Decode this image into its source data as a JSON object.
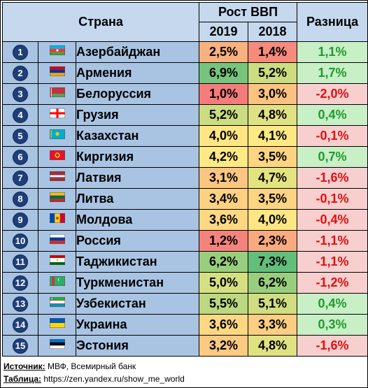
{
  "header": {
    "country_col": "Страна",
    "gdp_group": "Рост ВВП",
    "year1": "2019",
    "year2": "2018",
    "diff_col": "Разница"
  },
  "chart_data": {
    "type": "table",
    "columns": [
      "Страна",
      "2019",
      "2018",
      "Разница"
    ],
    "rows": [
      {
        "n": "1",
        "country": "Азербайджан",
        "flag": "azerbaijan-flag",
        "y2019": "2,5%",
        "y2018": "1,4%",
        "diff": "1,1%",
        "v2019": 2.5,
        "v2018": 1.4,
        "dv": 1.1
      },
      {
        "n": "2",
        "country": "Армения",
        "flag": "armenia-flag",
        "y2019": "6,9%",
        "y2018": "5,2%",
        "diff": "1,7%",
        "v2019": 6.9,
        "v2018": 5.2,
        "dv": 1.7
      },
      {
        "n": "3",
        "country": "Белоруссия",
        "flag": "belarus-flag",
        "y2019": "1,0%",
        "y2018": "3,0%",
        "diff": "-2,0%",
        "v2019": 1.0,
        "v2018": 3.0,
        "dv": -2.0
      },
      {
        "n": "4",
        "country": "Грузия",
        "flag": "georgia-flag",
        "y2019": "5,2%",
        "y2018": "4,8%",
        "diff": "0,4%",
        "v2019": 5.2,
        "v2018": 4.8,
        "dv": 0.4
      },
      {
        "n": "5",
        "country": "Казахстан",
        "flag": "kazakhstan-flag",
        "y2019": "4,0%",
        "y2018": "4,1%",
        "diff": "-0,1%",
        "v2019": 4.0,
        "v2018": 4.1,
        "dv": -0.1
      },
      {
        "n": "6",
        "country": "Киргизия",
        "flag": "kyrgyzstan-flag",
        "y2019": "4,2%",
        "y2018": "3,5%",
        "diff": "0,7%",
        "v2019": 4.2,
        "v2018": 3.5,
        "dv": 0.7
      },
      {
        "n": "7",
        "country": "Латвия",
        "flag": "latvia-flag",
        "y2019": "3,1%",
        "y2018": "4,7%",
        "diff": "-1,6%",
        "v2019": 3.1,
        "v2018": 4.7,
        "dv": -1.6
      },
      {
        "n": "8",
        "country": "Литва",
        "flag": "lithuania-flag",
        "y2019": "3,4%",
        "y2018": "3,5%",
        "diff": "-0,1%",
        "v2019": 3.4,
        "v2018": 3.5,
        "dv": -0.1
      },
      {
        "n": "9",
        "country": "Молдова",
        "flag": "moldova-flag",
        "y2019": "3,6%",
        "y2018": "4,0%",
        "diff": "-0,4%",
        "v2019": 3.6,
        "v2018": 4.0,
        "dv": -0.4
      },
      {
        "n": "10",
        "country": "Россия",
        "flag": "russia-flag",
        "y2019": "1,2%",
        "y2018": "2,3%",
        "diff": "-1,1%",
        "v2019": 1.2,
        "v2018": 2.3,
        "dv": -1.1
      },
      {
        "n": "11",
        "country": "Таджикистан",
        "flag": "tajikistan-flag",
        "y2019": "6,2%",
        "y2018": "7,3%",
        "diff": "-1,1%",
        "v2019": 6.2,
        "v2018": 7.3,
        "dv": -1.1
      },
      {
        "n": "12",
        "country": "Туркменистан",
        "flag": "turkmenistan-flag",
        "y2019": "5,0%",
        "y2018": "6,2%",
        "diff": "-1,2%",
        "v2019": 5.0,
        "v2018": 6.2,
        "dv": -1.2
      },
      {
        "n": "13",
        "country": "Узбекистан",
        "flag": "uzbekistan-flag",
        "y2019": "5,5%",
        "y2018": "5,1%",
        "diff": "0,4%",
        "v2019": 5.5,
        "v2018": 5.1,
        "dv": 0.4
      },
      {
        "n": "14",
        "country": "Украина",
        "flag": "ukraine-flag",
        "y2019": "3,6%",
        "y2018": "3,3%",
        "diff": "0,3%",
        "v2019": 3.6,
        "v2018": 3.3,
        "dv": 0.3
      },
      {
        "n": "15",
        "country": "Эстония",
        "flag": "estonia-flag",
        "y2019": "3,2%",
        "y2018": "4,8%",
        "diff": "-1,6%",
        "v2019": 3.2,
        "v2018": 4.8,
        "dv": -1.6
      }
    ]
  },
  "colors": {
    "positive_text": "#1f9a2e",
    "negative_text": "#e01010",
    "positive_bg": "#c8efc6",
    "negative_bg": "#f8cfcf",
    "scale_low": "#f47c7c",
    "scale_mid": "#ffeb84",
    "scale_high": "#63be7b"
  },
  "footer": {
    "source_label": "Источник:",
    "source_text": "МВФ, Всемирный банк",
    "table_label": "Таблица:",
    "table_text": "https://zen.yandex.ru/show_me_world"
  }
}
